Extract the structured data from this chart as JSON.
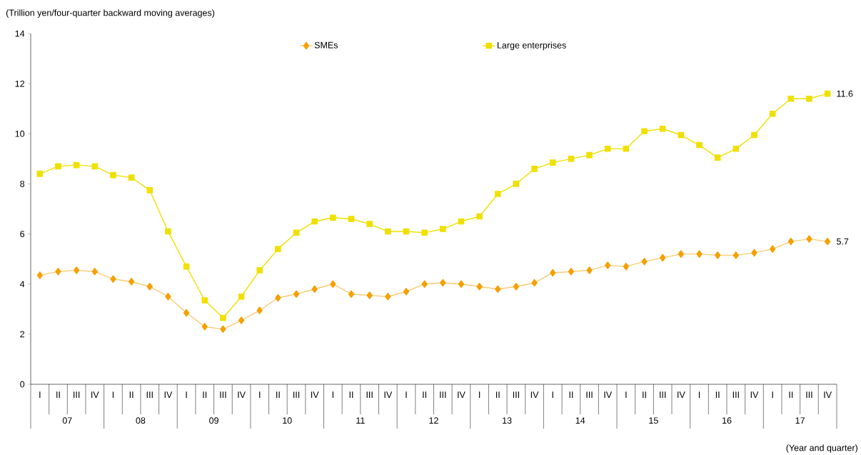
{
  "chart_data": {
    "type": "line",
    "ylabel": "(Trillion yen/four-quarter backward moving averages)",
    "categories": [
      "I",
      "II",
      "III",
      "IV",
      "I",
      "II",
      "III",
      "IV",
      "I",
      "II",
      "III",
      "IV",
      "I",
      "II",
      "III",
      "IV",
      "I",
      "II",
      "III",
      "IV",
      "I",
      "II",
      "III",
      "IV",
      "I",
      "II",
      "III",
      "IV",
      "I",
      "II",
      "III",
      "IV",
      "I",
      "II",
      "III",
      "IV",
      "I",
      "II",
      "III",
      "IV",
      "I",
      "II",
      "III",
      "IV"
    ],
    "annotations": [
      "07",
      "08",
      "09",
      "10",
      "11",
      "12",
      "13",
      "14",
      "15",
      "16",
      "17",
      "(Year and quarter)"
    ],
    "ylim": [
      0,
      14
    ],
    "yticks": [
      0,
      2,
      4,
      6,
      8,
      10,
      12,
      14
    ],
    "grid": false,
    "legend": "top",
    "series": [
      {
        "name": "SMEs",
        "color": "#f5a000",
        "marker": "diamond",
        "values": [
          4.35,
          4.5,
          4.55,
          4.5,
          4.2,
          4.1,
          3.9,
          3.5,
          2.85,
          2.3,
          2.2,
          2.55,
          2.95,
          3.45,
          3.6,
          3.8,
          4.0,
          3.6,
          3.55,
          3.5,
          3.7,
          4.0,
          4.05,
          4.0,
          3.9,
          3.8,
          3.9,
          4.05,
          4.45,
          4.5,
          4.55,
          4.75,
          4.7,
          4.9,
          5.05,
          5.2,
          5.2,
          5.15,
          5.15,
          5.25,
          5.4,
          5.7,
          5.8,
          5.7
        ],
        "value_labels": [
          null,
          null,
          null,
          null,
          null,
          null,
          null,
          null,
          null,
          null,
          null,
          null,
          null,
          null,
          null,
          null,
          null,
          null,
          null,
          null,
          null,
          null,
          null,
          null,
          null,
          null,
          null,
          null,
          null,
          null,
          null,
          null,
          null,
          null,
          null,
          null,
          null,
          null,
          null,
          null,
          null,
          null,
          null,
          "5.7"
        ]
      },
      {
        "name": "Large enterprises",
        "color": "#f0e000",
        "marker": "square",
        "values": [
          8.4,
          8.7,
          8.75,
          8.7,
          8.35,
          8.25,
          7.75,
          6.1,
          4.7,
          3.35,
          2.65,
          3.5,
          4.55,
          5.4,
          6.05,
          6.5,
          6.65,
          6.6,
          6.4,
          6.1,
          6.1,
          6.05,
          6.2,
          6.5,
          6.7,
          7.6,
          8.0,
          8.6,
          8.85,
          9.0,
          9.15,
          9.4,
          9.4,
          10.1,
          10.2,
          9.95,
          9.55,
          9.05,
          9.4,
          9.95,
          10.8,
          11.4,
          11.4,
          11.6
        ],
        "value_labels": [
          null,
          null,
          null,
          null,
          null,
          null,
          null,
          null,
          null,
          null,
          null,
          null,
          null,
          null,
          null,
          null,
          null,
          null,
          null,
          null,
          null,
          null,
          null,
          null,
          null,
          null,
          null,
          null,
          null,
          null,
          null,
          null,
          null,
          null,
          null,
          null,
          null,
          null,
          null,
          null,
          null,
          null,
          null,
          "11.6"
        ]
      }
    ]
  }
}
